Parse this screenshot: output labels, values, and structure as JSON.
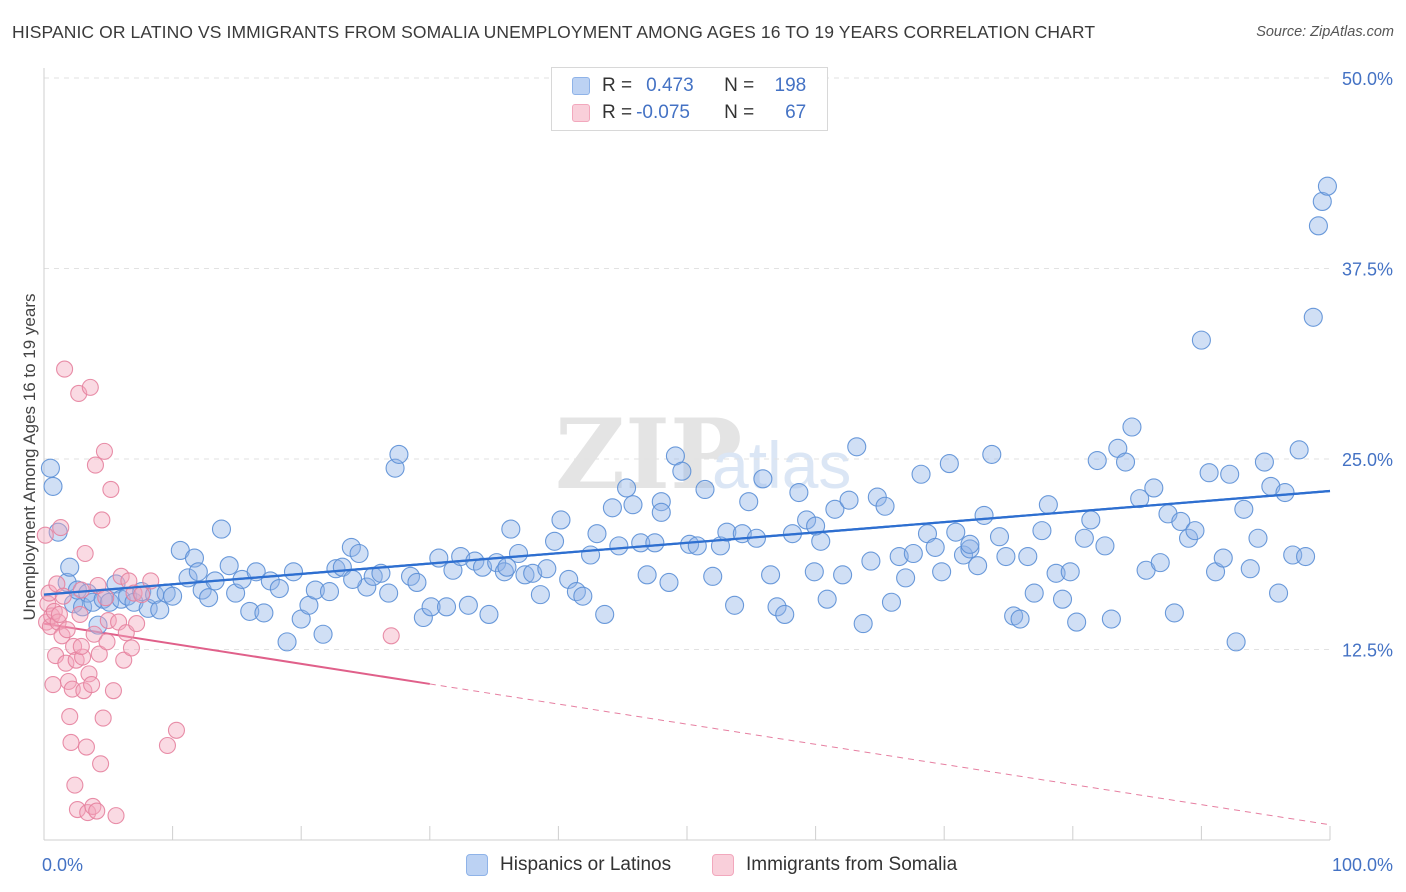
{
  "title": "HISPANIC OR LATINO VS IMMIGRANTS FROM SOMALIA UNEMPLOYMENT AMONG AGES 16 TO 19 YEARS CORRELATION CHART",
  "source": "Source: ZipAtlas.com",
  "watermark": {
    "zip": "ZIP",
    "atlas": "atlas"
  },
  "legend": {
    "r_label": "R =",
    "n_label": "N =",
    "rows": [
      {
        "r": "0.473",
        "n": "198",
        "color": "#8fb3e8"
      },
      {
        "r": "-0.075",
        "n": "67",
        "color": "#f2a8bd"
      }
    ]
  },
  "bottom_legend": [
    "Hispanics or Latinos",
    "Immigrants from Somalia"
  ],
  "chart_data": {
    "type": "scatter",
    "title": "HISPANIC OR LATINO VS IMMIGRANTS FROM SOMALIA UNEMPLOYMENT AMONG AGES 16 TO 19 YEARS CORRELATION CHART",
    "xlabel": "",
    "ylabel": "Unemployment Among Ages 16 to 19 years",
    "xlim": [
      0,
      100
    ],
    "ylim": [
      0,
      50
    ],
    "x_tick_labels": [
      "0.0%",
      "100.0%"
    ],
    "y_ticks": [
      12.5,
      25.0,
      37.5,
      50.0
    ],
    "y_tick_labels": [
      "12.5%",
      "25.0%",
      "37.5%",
      "50.0%"
    ],
    "grid": true,
    "series": [
      {
        "name": "Hispanics or Latinos",
        "color": "#8fb3e8",
        "edge": "#5b8fd6",
        "line_color": "#2e6fd0",
        "trend": {
          "x": [
            0,
            100
          ],
          "y": [
            16.1,
            22.9
          ]
        },
        "points": [
          [
            0.5,
            24.4
          ],
          [
            0.7,
            23.2
          ],
          [
            1.1,
            20.2
          ],
          [
            1.8,
            16.9
          ],
          [
            2.0,
            17.9
          ],
          [
            2.3,
            15.5
          ],
          [
            2.6,
            16.4
          ],
          [
            3.0,
            15.3
          ],
          [
            3.4,
            16.2
          ],
          [
            3.8,
            15.6
          ],
          [
            4.2,
            14.1
          ],
          [
            4.6,
            15.8
          ],
          [
            5.1,
            15.6
          ],
          [
            5.6,
            16.8
          ],
          [
            6.0,
            15.8
          ],
          [
            6.5,
            16.0
          ],
          [
            7.0,
            15.6
          ],
          [
            7.6,
            16.3
          ],
          [
            8.1,
            15.2
          ],
          [
            8.6,
            16.1
          ],
          [
            9.0,
            15.1
          ],
          [
            9.5,
            16.2
          ],
          [
            10.0,
            16.0
          ],
          [
            10.6,
            19.0
          ],
          [
            11.2,
            17.2
          ],
          [
            11.7,
            18.5
          ],
          [
            12.3,
            16.4
          ],
          [
            12.8,
            15.9
          ],
          [
            13.3,
            17.0
          ],
          [
            13.8,
            20.4
          ],
          [
            14.4,
            18.0
          ],
          [
            14.9,
            16.2
          ],
          [
            15.4,
            17.1
          ],
          [
            16.0,
            15.0
          ],
          [
            16.5,
            17.6
          ],
          [
            17.1,
            14.9
          ],
          [
            17.6,
            17.0
          ],
          [
            18.3,
            16.5
          ],
          [
            18.9,
            13.0
          ],
          [
            19.4,
            17.6
          ],
          [
            20.0,
            14.5
          ],
          [
            20.6,
            15.4
          ],
          [
            21.1,
            16.4
          ],
          [
            21.7,
            13.5
          ],
          [
            22.2,
            16.3
          ],
          [
            22.7,
            17.8
          ],
          [
            23.2,
            17.9
          ],
          [
            23.9,
            19.2
          ],
          [
            24.5,
            18.8
          ],
          [
            25.1,
            16.6
          ],
          [
            25.6,
            17.3
          ],
          [
            26.2,
            17.5
          ],
          [
            26.8,
            16.2
          ],
          [
            27.3,
            24.4
          ],
          [
            27.6,
            25.3
          ],
          [
            28.5,
            17.3
          ],
          [
            29.0,
            16.9
          ],
          [
            29.5,
            14.6
          ],
          [
            30.1,
            15.3
          ],
          [
            30.7,
            18.5
          ],
          [
            31.3,
            15.3
          ],
          [
            31.8,
            17.7
          ],
          [
            32.4,
            18.6
          ],
          [
            33.0,
            15.4
          ],
          [
            33.5,
            18.3
          ],
          [
            34.1,
            17.9
          ],
          [
            34.6,
            14.8
          ],
          [
            35.2,
            18.2
          ],
          [
            35.8,
            17.6
          ],
          [
            36.3,
            20.4
          ],
          [
            36.9,
            18.8
          ],
          [
            37.4,
            17.4
          ],
          [
            38.0,
            17.5
          ],
          [
            38.6,
            16.1
          ],
          [
            39.1,
            17.8
          ],
          [
            39.7,
            19.6
          ],
          [
            40.2,
            21.0
          ],
          [
            40.8,
            17.1
          ],
          [
            41.4,
            16.3
          ],
          [
            41.9,
            16.0
          ],
          [
            42.5,
            18.7
          ],
          [
            43.0,
            20.1
          ],
          [
            43.6,
            14.8
          ],
          [
            44.2,
            21.8
          ],
          [
            44.7,
            19.3
          ],
          [
            45.3,
            23.1
          ],
          [
            45.8,
            22.0
          ],
          [
            46.4,
            19.5
          ],
          [
            46.9,
            17.4
          ],
          [
            47.5,
            19.5
          ],
          [
            48.0,
            22.2
          ],
          [
            48.6,
            16.9
          ],
          [
            49.1,
            25.2
          ],
          [
            49.6,
            24.2
          ],
          [
            50.2,
            19.4
          ],
          [
            50.8,
            19.3
          ],
          [
            51.4,
            23.0
          ],
          [
            52.0,
            17.3
          ],
          [
            52.6,
            19.3
          ],
          [
            53.1,
            20.2
          ],
          [
            53.7,
            15.4
          ],
          [
            54.3,
            20.1
          ],
          [
            54.8,
            22.2
          ],
          [
            55.4,
            19.8
          ],
          [
            55.9,
            23.7
          ],
          [
            56.5,
            17.4
          ],
          [
            57.0,
            15.3
          ],
          [
            57.6,
            14.8
          ],
          [
            58.2,
            20.1
          ],
          [
            58.7,
            22.8
          ],
          [
            59.3,
            21.0
          ],
          [
            59.9,
            17.6
          ],
          [
            60.4,
            19.6
          ],
          [
            60.9,
            15.8
          ],
          [
            61.5,
            21.7
          ],
          [
            62.1,
            17.4
          ],
          [
            62.6,
            22.3
          ],
          [
            63.2,
            25.8
          ],
          [
            63.7,
            14.2
          ],
          [
            64.3,
            18.3
          ],
          [
            64.8,
            22.5
          ],
          [
            65.4,
            21.9
          ],
          [
            65.9,
            15.6
          ],
          [
            66.5,
            18.6
          ],
          [
            67.0,
            17.2
          ],
          [
            67.6,
            18.8
          ],
          [
            68.2,
            24.0
          ],
          [
            68.7,
            20.1
          ],
          [
            69.3,
            19.2
          ],
          [
            69.8,
            17.6
          ],
          [
            70.4,
            24.7
          ],
          [
            70.9,
            20.2
          ],
          [
            71.5,
            18.7
          ],
          [
            72.0,
            19.1
          ],
          [
            72.6,
            18.0
          ],
          [
            73.1,
            21.3
          ],
          [
            73.7,
            25.3
          ],
          [
            74.3,
            19.9
          ],
          [
            74.8,
            18.6
          ],
          [
            75.4,
            14.7
          ],
          [
            75.9,
            14.5
          ],
          [
            76.5,
            18.6
          ],
          [
            77.0,
            16.2
          ],
          [
            77.6,
            20.3
          ],
          [
            78.1,
            22.0
          ],
          [
            78.7,
            17.5
          ],
          [
            79.2,
            15.8
          ],
          [
            79.8,
            17.6
          ],
          [
            80.3,
            14.3
          ],
          [
            80.9,
            19.8
          ],
          [
            81.4,
            21.0
          ],
          [
            81.9,
            24.9
          ],
          [
            82.5,
            19.3
          ],
          [
            83.0,
            14.5
          ],
          [
            83.5,
            25.7
          ],
          [
            84.1,
            24.8
          ],
          [
            84.6,
            27.1
          ],
          [
            85.2,
            22.4
          ],
          [
            85.7,
            17.7
          ],
          [
            86.3,
            23.1
          ],
          [
            86.8,
            18.2
          ],
          [
            87.4,
            21.4
          ],
          [
            87.9,
            14.9
          ],
          [
            88.4,
            20.9
          ],
          [
            89.0,
            19.8
          ],
          [
            89.5,
            20.3
          ],
          [
            90.0,
            32.8
          ],
          [
            90.6,
            24.1
          ],
          [
            91.1,
            17.6
          ],
          [
            91.7,
            18.5
          ],
          [
            92.2,
            24.0
          ],
          [
            92.7,
            13.0
          ],
          [
            93.3,
            21.7
          ],
          [
            93.8,
            17.8
          ],
          [
            94.4,
            19.8
          ],
          [
            94.9,
            24.8
          ],
          [
            95.4,
            23.2
          ],
          [
            96.0,
            16.2
          ],
          [
            96.5,
            22.8
          ],
          [
            97.1,
            18.7
          ],
          [
            97.6,
            25.6
          ],
          [
            98.1,
            18.6
          ],
          [
            98.7,
            34.3
          ],
          [
            99.1,
            40.3
          ],
          [
            99.4,
            41.9
          ],
          [
            99.8,
            42.9
          ],
          [
            12.0,
            17.6
          ],
          [
            24.0,
            17.1
          ],
          [
            36.0,
            17.9
          ],
          [
            48.0,
            21.5
          ],
          [
            60.0,
            20.6
          ],
          [
            72.0,
            19.4
          ]
        ]
      },
      {
        "name": "Immigrants from Somalia",
        "color": "#f2a8bd",
        "edge": "#e6829f",
        "line_color": "#e0608a",
        "trend": {
          "x": [
            0,
            100
          ],
          "y": [
            14.2,
            1.0
          ]
        },
        "trend_solid_to_x": 30,
        "points": [
          [
            0.1,
            20.0
          ],
          [
            0.2,
            14.3
          ],
          [
            0.3,
            15.5
          ],
          [
            0.4,
            16.2
          ],
          [
            0.5,
            14.0
          ],
          [
            0.6,
            14.7
          ],
          [
            0.7,
            10.2
          ],
          [
            0.8,
            15.0
          ],
          [
            0.9,
            12.1
          ],
          [
            1.0,
            16.8
          ],
          [
            1.1,
            14.3
          ],
          [
            1.2,
            14.8
          ],
          [
            1.3,
            20.5
          ],
          [
            1.4,
            13.4
          ],
          [
            1.5,
            16.0
          ],
          [
            1.6,
            30.9
          ],
          [
            1.7,
            11.6
          ],
          [
            1.8,
            13.8
          ],
          [
            1.9,
            10.4
          ],
          [
            2.0,
            8.1
          ],
          [
            2.1,
            6.4
          ],
          [
            2.2,
            9.9
          ],
          [
            2.3,
            12.7
          ],
          [
            2.4,
            3.6
          ],
          [
            2.5,
            11.8
          ],
          [
            2.6,
            2.0
          ],
          [
            2.7,
            29.3
          ],
          [
            2.8,
            14.8
          ],
          [
            2.9,
            16.4
          ],
          [
            3.0,
            12.0
          ],
          [
            3.1,
            9.8
          ],
          [
            3.2,
            18.8
          ],
          [
            3.3,
            6.1
          ],
          [
            3.4,
            1.8
          ],
          [
            3.5,
            10.9
          ],
          [
            3.6,
            29.7
          ],
          [
            3.7,
            10.2
          ],
          [
            3.8,
            2.2
          ],
          [
            3.9,
            13.5
          ],
          [
            4.0,
            24.6
          ],
          [
            4.1,
            1.9
          ],
          [
            4.2,
            16.7
          ],
          [
            4.3,
            12.2
          ],
          [
            4.4,
            5.0
          ],
          [
            4.5,
            21.0
          ],
          [
            4.6,
            8.0
          ],
          [
            4.7,
            25.5
          ],
          [
            4.8,
            15.9
          ],
          [
            4.9,
            13.0
          ],
          [
            5.0,
            14.4
          ],
          [
            5.2,
            23.0
          ],
          [
            5.4,
            9.8
          ],
          [
            5.6,
            1.6
          ],
          [
            5.8,
            14.3
          ],
          [
            6.0,
            17.3
          ],
          [
            6.2,
            11.8
          ],
          [
            6.4,
            13.6
          ],
          [
            6.6,
            17.0
          ],
          [
            6.8,
            12.6
          ],
          [
            7.0,
            16.2
          ],
          [
            7.2,
            14.2
          ],
          [
            7.6,
            16.1
          ],
          [
            8.3,
            17.0
          ],
          [
            9.6,
            6.2
          ],
          [
            10.3,
            7.2
          ],
          [
            27.0,
            13.4
          ],
          [
            2.9,
            12.7
          ]
        ]
      }
    ]
  }
}
